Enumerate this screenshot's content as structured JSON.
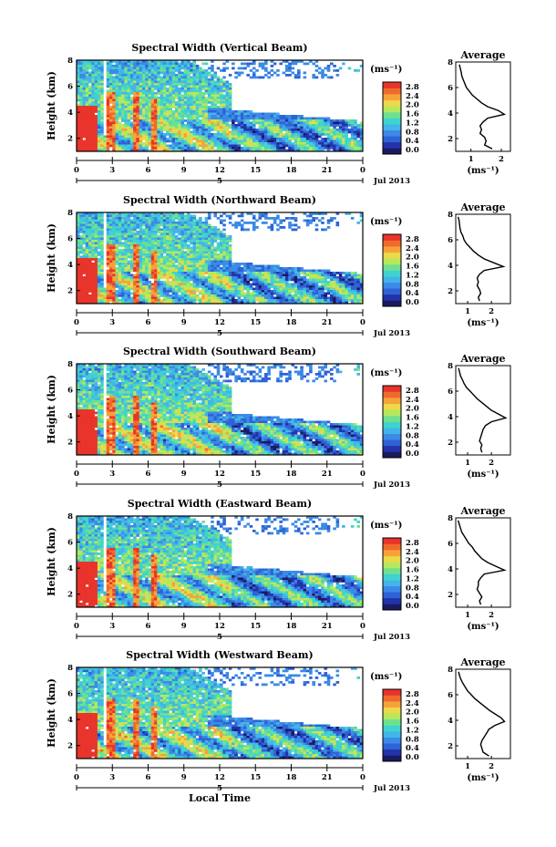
{
  "figure": {
    "xlabel": "Local Time",
    "ylabel": "Height (km)",
    "unit_label": "(ms⁻¹)",
    "date_label": "Jul 2013",
    "day_label": "5",
    "avg_title": "Average",
    "avg_xlabel": "(ms⁻¹)"
  },
  "colorbar": {
    "ticks": [
      "0.0",
      "0.4",
      "0.8",
      "1.2",
      "1.6",
      "2.0",
      "2.4",
      "2.8"
    ],
    "palette": [
      "#1a1a5e",
      "#2233aa",
      "#2f62d4",
      "#3a8ae6",
      "#44b4e8",
      "#3fd3cf",
      "#6fe08f",
      "#b6e85d",
      "#ecd84a",
      "#f6a23b",
      "#f06a2c",
      "#e8342a"
    ]
  },
  "chart_data": [
    {
      "type": "heatmap",
      "title": "Spectral Width (Vertical Beam)",
      "xlabel": "",
      "ylabel": "Height (km)",
      "x_ticks": [
        "0",
        "3",
        "6",
        "9",
        "12",
        "15",
        "18",
        "21",
        "0"
      ],
      "y_ticks": [
        "2",
        "4",
        "6",
        "8"
      ],
      "xlim": [
        0,
        24
      ],
      "ylim": [
        1,
        8
      ],
      "colorbar_range": [
        0.0,
        2.8
      ],
      "average_profile": {
        "title": "Average",
        "x_ticks": [
          "1",
          "2"
        ],
        "xlim": [
          0.5,
          2.3
        ],
        "y_ticks": [
          "2",
          "4",
          "6",
          "8"
        ],
        "height": [
          1.2,
          1.5,
          1.8,
          2.1,
          2.4,
          2.7,
          3.0,
          3.3,
          3.6,
          3.9,
          4.2,
          4.5,
          4.8,
          5.1,
          5.4,
          5.7,
          6.0,
          6.3,
          6.6,
          6.9,
          7.2,
          7.5,
          7.8
        ],
        "value": [
          1.7,
          1.45,
          1.5,
          1.45,
          1.3,
          1.35,
          1.3,
          1.4,
          1.55,
          2.1,
          1.9,
          1.55,
          1.35,
          1.2,
          1.05,
          0.95,
          0.85,
          0.8,
          0.75,
          0.7,
          0.68,
          0.65,
          0.62
        ]
      }
    },
    {
      "type": "heatmap",
      "title": "Spectral Width (Northward Beam)",
      "xlabel": "",
      "ylabel": "Height (km)",
      "x_ticks": [
        "0",
        "3",
        "6",
        "9",
        "12",
        "15",
        "18",
        "21",
        "0"
      ],
      "y_ticks": [
        "2",
        "4",
        "6",
        "8"
      ],
      "xlim": [
        0,
        24
      ],
      "ylim": [
        1,
        8
      ],
      "colorbar_range": [
        0.0,
        2.8
      ],
      "average_profile": {
        "title": "Average",
        "x_ticks": [
          "1",
          "2"
        ],
        "xlim": [
          0.5,
          2.8
        ],
        "y_ticks": [
          "2",
          "4",
          "6",
          "8"
        ],
        "height": [
          1.2,
          1.5,
          1.8,
          2.1,
          2.4,
          2.7,
          3.0,
          3.3,
          3.6,
          3.9,
          4.2,
          4.5,
          4.8,
          5.1,
          5.4,
          5.7,
          6.0,
          6.3,
          6.6,
          6.9,
          7.2,
          7.5,
          7.8
        ],
        "value": [
          1.5,
          1.45,
          1.55,
          1.5,
          1.4,
          1.45,
          1.4,
          1.5,
          1.7,
          2.5,
          2.1,
          1.7,
          1.45,
          1.25,
          1.1,
          0.95,
          0.85,
          0.8,
          0.72,
          0.68,
          0.66,
          0.64,
          0.6
        ]
      }
    },
    {
      "type": "heatmap",
      "title": "Spectral Width (Southward Beam)",
      "xlabel": "",
      "ylabel": "Height (km)",
      "x_ticks": [
        "0",
        "3",
        "6",
        "9",
        "12",
        "15",
        "18",
        "21",
        "0"
      ],
      "y_ticks": [
        "2",
        "4",
        "6",
        "8"
      ],
      "xlim": [
        0,
        24
      ],
      "ylim": [
        1,
        8
      ],
      "colorbar_range": [
        0.0,
        2.8
      ],
      "average_profile": {
        "title": "Average",
        "x_ticks": [
          "1",
          "2"
        ],
        "xlim": [
          0.5,
          2.8
        ],
        "y_ticks": [
          "2",
          "4",
          "6",
          "8"
        ],
        "height": [
          1.2,
          1.5,
          1.8,
          2.1,
          2.4,
          2.7,
          3.0,
          3.3,
          3.6,
          3.9,
          4.2,
          4.5,
          4.8,
          5.1,
          5.4,
          5.7,
          6.0,
          6.3,
          6.6,
          6.9,
          7.2,
          7.5,
          7.8
        ],
        "value": [
          1.6,
          1.55,
          1.6,
          1.5,
          1.55,
          1.6,
          1.65,
          1.75,
          2.0,
          2.6,
          2.3,
          2.0,
          1.8,
          1.6,
          1.4,
          1.25,
          1.1,
          0.95,
          0.85,
          0.78,
          0.7,
          0.66,
          0.62
        ]
      }
    },
    {
      "type": "heatmap",
      "title": "Spectral Width (Eastward Beam)",
      "xlabel": "",
      "ylabel": "Height (km)",
      "x_ticks": [
        "0",
        "3",
        "6",
        "9",
        "12",
        "15",
        "18",
        "21",
        "0"
      ],
      "y_ticks": [
        "2",
        "4",
        "6",
        "8"
      ],
      "xlim": [
        0,
        24
      ],
      "ylim": [
        1,
        8
      ],
      "colorbar_range": [
        0.0,
        2.8
      ],
      "average_profile": {
        "title": "Average",
        "x_ticks": [
          "1",
          "2"
        ],
        "xlim": [
          0.5,
          2.8
        ],
        "y_ticks": [
          "2",
          "4",
          "6",
          "8"
        ],
        "height": [
          1.2,
          1.5,
          1.8,
          2.1,
          2.4,
          2.7,
          3.0,
          3.3,
          3.6,
          3.9,
          4.2,
          4.5,
          4.8,
          5.1,
          5.4,
          5.7,
          6.0,
          6.3,
          6.6,
          6.9,
          7.2,
          7.5,
          7.8
        ],
        "value": [
          1.55,
          1.5,
          1.6,
          1.5,
          1.4,
          1.45,
          1.45,
          1.55,
          1.7,
          2.55,
          2.2,
          1.85,
          1.6,
          1.45,
          1.3,
          1.2,
          1.05,
          0.95,
          0.85,
          0.75,
          0.7,
          0.65,
          0.6
        ]
      }
    },
    {
      "type": "heatmap",
      "title": "Spectral Width (Westward Beam)",
      "xlabel": "Local Time",
      "ylabel": "Height (km)",
      "x_ticks": [
        "0",
        "3",
        "6",
        "9",
        "12",
        "15",
        "18",
        "21",
        "0"
      ],
      "y_ticks": [
        "2",
        "4",
        "6",
        "8"
      ],
      "xlim": [
        0,
        24
      ],
      "ylim": [
        1,
        8
      ],
      "colorbar_range": [
        0.0,
        2.8
      ],
      "average_profile": {
        "title": "Average",
        "x_ticks": [
          "1",
          "2"
        ],
        "xlim": [
          0.5,
          2.8
        ],
        "y_ticks": [
          "2",
          "4",
          "6",
          "8"
        ],
        "height": [
          1.2,
          1.5,
          1.8,
          2.1,
          2.4,
          2.7,
          3.0,
          3.3,
          3.6,
          3.9,
          4.2,
          4.5,
          4.8,
          5.1,
          5.4,
          5.7,
          6.0,
          6.3,
          6.6,
          6.9,
          7.2,
          7.5,
          7.8
        ],
        "value": [
          1.9,
          1.65,
          1.6,
          1.55,
          1.6,
          1.7,
          1.8,
          1.9,
          2.15,
          2.55,
          2.4,
          2.15,
          1.9,
          1.7,
          1.5,
          1.3,
          1.15,
          1.0,
          0.9,
          0.8,
          0.72,
          0.66,
          0.62
        ]
      }
    }
  ]
}
